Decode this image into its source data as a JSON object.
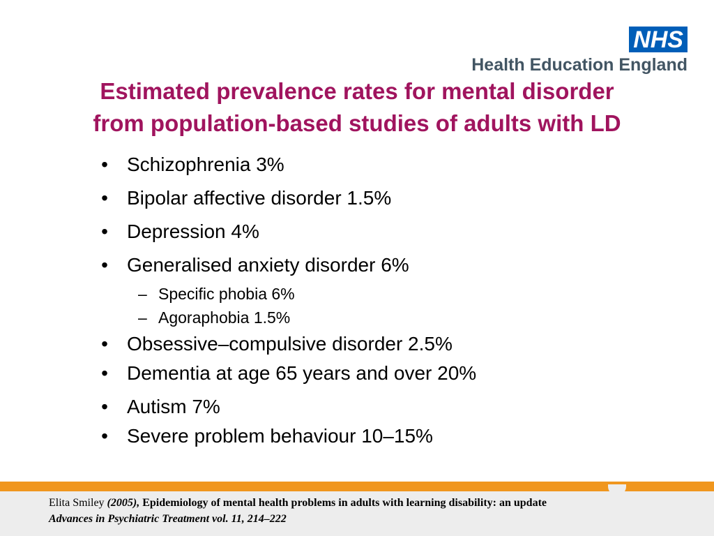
{
  "logo": {
    "nhs": "NHS",
    "org": "Health Education England"
  },
  "title": {
    "line1": "Estimated prevalence rates for mental disorder",
    "line2": "from population-based studies of adults with LD"
  },
  "bullets": [
    "Schizophrenia 3%",
    "Bipolar affective disorder 1.5%",
    "Depression 4%",
    "Generalised anxiety disorder 6%"
  ],
  "sub_bullets": [
    "Specific phobia 6%",
    "Agoraphobia 1.5%"
  ],
  "bullets_after": [
    "Obsessive–compulsive disorder 2.5%",
    "Dementia at age 65 years and over 20%",
    "Autism 7%",
    "Severe problem behaviour 10–15%"
  ],
  "markers": {
    "bullet": "•",
    "dash": "–"
  },
  "citation": {
    "author": "Elita Smiley",
    "year": "(2005),",
    "article": "Epidemiology of mental health problems in adults with learning disability: an update",
    "journal": "Advances in Psychiatric Treatment vol. 11, 214–222"
  },
  "colors": {
    "title": "#a0145e",
    "nhs_blue": "#005eb8",
    "footer_band": "#f0961e"
  }
}
